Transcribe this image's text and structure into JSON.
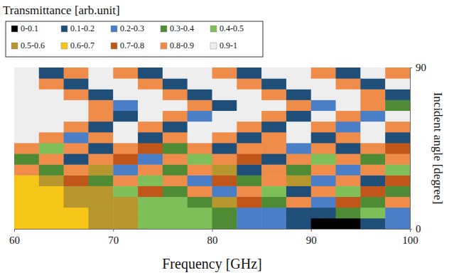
{
  "chart_data": {
    "type": "heatmap",
    "title": "Transmittance [arb.unit]",
    "x_label": "Frequency [GHz]",
    "y_label": "Incident angle [degree]",
    "xlim": [
      60,
      100
    ],
    "ylim": [
      0,
      90
    ],
    "xticks": [
      60,
      70,
      80,
      90,
      100
    ],
    "yticks": [
      0,
      90
    ],
    "x_bins": [
      60,
      62.5,
      65,
      67.5,
      70,
      72.5,
      75,
      77.5,
      80,
      82.5,
      85,
      87.5,
      90,
      92.5,
      95,
      97.5,
      100
    ],
    "y_bins": [
      0,
      6,
      12,
      18,
      24,
      30,
      36,
      42,
      48,
      54,
      60,
      66,
      72,
      78,
      84,
      90
    ],
    "cells": [
      [
        0.62,
        0.62,
        0.6,
        0.58,
        0.55,
        0.48,
        0.45,
        0.42,
        0.38,
        0.28,
        0.22,
        0.15,
        0.08,
        0.05,
        0.12,
        0.2
      ],
      [
        0.63,
        0.62,
        0.6,
        0.57,
        0.52,
        0.47,
        0.44,
        0.4,
        0.36,
        0.27,
        0.2,
        0.15,
        0.12,
        0.3,
        0.45,
        0.2
      ],
      [
        0.64,
        0.62,
        0.58,
        0.55,
        0.5,
        0.45,
        0.42,
        0.35,
        0.5,
        0.75,
        0.3,
        0.85,
        0.2,
        0.75,
        0.35,
        0.8
      ],
      [
        0.66,
        0.6,
        0.55,
        0.5,
        0.45,
        0.75,
        0.35,
        0.85,
        0.25,
        0.8,
        0.45,
        0.15,
        0.85,
        0.4,
        0.75,
        0.3
      ],
      [
        0.6,
        0.55,
        0.75,
        0.3,
        0.85,
        0.45,
        0.8,
        0.2,
        0.75,
        0.35,
        0.85,
        0.5,
        0.25,
        0.85,
        0.15,
        0.75
      ],
      [
        0.8,
        0.3,
        0.85,
        0.5,
        0.2,
        0.8,
        0.35,
        0.85,
        0.55,
        0.15,
        0.8,
        0.35,
        0.85,
        0.2,
        0.8,
        0.45
      ],
      [
        0.35,
        0.85,
        0.15,
        0.8,
        0.75,
        0.25,
        0.85,
        0.4,
        0.8,
        0.75,
        0.15,
        0.85,
        0.45,
        0.8,
        0.3,
        0.85
      ],
      [
        0.85,
        0.45,
        0.8,
        0.12,
        0.85,
        0.75,
        0.3,
        0.85,
        0.12,
        0.85,
        0.8,
        0.25,
        0.85,
        0.1,
        0.85,
        0.78
      ],
      [
        0.95,
        0.85,
        0.2,
        0.85,
        0.92,
        0.15,
        0.85,
        0.95,
        0.85,
        0.1,
        0.85,
        0.95,
        0.15,
        0.85,
        0.92,
        0.1
      ],
      [
        0.96,
        0.95,
        0.85,
        0.1,
        0.95,
        0.85,
        0.15,
        0.95,
        0.95,
        0.85,
        0.1,
        0.95,
        0.85,
        0.2,
        0.95,
        0.85
      ],
      [
        0.97,
        0.96,
        0.95,
        0.85,
        0.15,
        0.96,
        0.85,
        0.2,
        0.96,
        0.95,
        0.85,
        0.15,
        0.95,
        0.85,
        0.25,
        0.95
      ],
      [
        0.98,
        0.97,
        0.96,
        0.85,
        0.25,
        0.96,
        0.95,
        0.85,
        0.15,
        0.96,
        0.95,
        0.85,
        0.2,
        0.95,
        0.85,
        0.3
      ],
      [
        0.98,
        0.97,
        0.85,
        0.15,
        0.95,
        0.97,
        0.85,
        0.15,
        0.96,
        0.97,
        0.85,
        0.12,
        0.96,
        0.96,
        0.85,
        0.15
      ],
      [
        0.98,
        0.85,
        0.15,
        0.94,
        0.97,
        0.85,
        0.12,
        0.95,
        0.97,
        0.85,
        0.1,
        0.95,
        0.97,
        0.85,
        0.1,
        0.95
      ],
      [
        0.97,
        0.1,
        0.85,
        0.97,
        0.85,
        0.1,
        0.92,
        0.97,
        0.85,
        0.1,
        0.95,
        0.97,
        0.85,
        0.1,
        0.95,
        0.85
      ]
    ],
    "colorbar": {
      "range": [
        0,
        1
      ],
      "bins": [
        {
          "label": "0-0.1",
          "range": [
            0,
            0.1
          ],
          "color": "#000000"
        },
        {
          "label": "0.1-0.2",
          "range": [
            0.1,
            0.2
          ],
          "color": "#1f4e79"
        },
        {
          "label": "0.2-0.3",
          "range": [
            0.2,
            0.3
          ],
          "color": "#4a7fc8"
        },
        {
          "label": "0.3-0.4",
          "range": [
            0.3,
            0.4
          ],
          "color": "#4f8a35"
        },
        {
          "label": "0.4-0.5",
          "range": [
            0.4,
            0.5
          ],
          "color": "#7fbf5a"
        },
        {
          "label": "0.5-0.6",
          "range": [
            0.5,
            0.6
          ],
          "color": "#b8962e"
        },
        {
          "label": "0.6-0.7",
          "range": [
            0.6,
            0.7
          ],
          "color": "#f5c518"
        },
        {
          "label": "0.7-0.8",
          "range": [
            0.7,
            0.8
          ],
          "color": "#c0561a"
        },
        {
          "label": "0.8-0.9",
          "range": [
            0.8,
            0.9
          ],
          "color": "#f08c4a"
        },
        {
          "label": "0.9-1",
          "range": [
            0.9,
            1
          ],
          "color": "#eeeeee"
        }
      ]
    }
  }
}
